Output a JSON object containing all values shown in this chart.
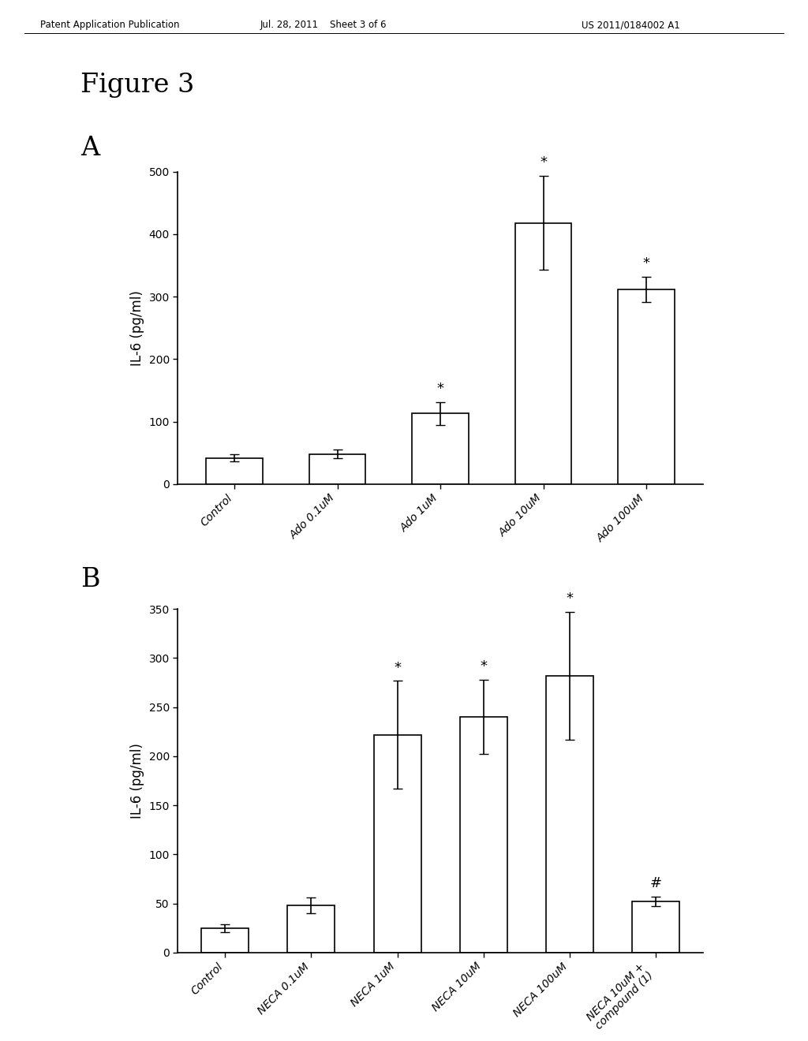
{
  "figure_title": "Figure 3",
  "header_left": "Patent Application Publication",
  "header_center": "Jul. 28, 2011    Sheet 3 of 6",
  "header_right": "US 2011/0184002 A1",
  "panel_A": {
    "label": "A",
    "categories": [
      "Control",
      "Ado 0.1uM",
      "Ado 1uM",
      "Ado 10uM",
      "Ado 100uM"
    ],
    "values": [
      42,
      48,
      113,
      418,
      312
    ],
    "errors": [
      6,
      7,
      18,
      75,
      20
    ],
    "sig_symbol": [
      "",
      "",
      "*",
      "*",
      "*"
    ],
    "ylabel": "IL-6 (pg/ml)",
    "ylim": [
      0,
      500
    ],
    "yticks": [
      0,
      100,
      200,
      300,
      400,
      500
    ]
  },
  "panel_B": {
    "label": "B",
    "categories": [
      "Control",
      "NECA 0.1uM",
      "NECA 1uM",
      "NECA 10uM",
      "NECA 100uM",
      "NECA 10uM +\ncompound (1)"
    ],
    "values": [
      25,
      48,
      222,
      240,
      282,
      52
    ],
    "errors": [
      4,
      8,
      55,
      38,
      65,
      5
    ],
    "sig_symbol": [
      "",
      "",
      "*",
      "*",
      "*",
      "#"
    ],
    "ylabel": "IL-6 (pg/ml)",
    "ylim": [
      0,
      350
    ],
    "yticks": [
      0,
      50,
      100,
      150,
      200,
      250,
      300,
      350
    ]
  },
  "bar_color": "#ffffff",
  "bar_edgecolor": "#000000",
  "background_color": "#ffffff",
  "bar_width": 0.55,
  "capsize": 4,
  "tick_label_fontsize": 10,
  "axis_label_fontsize": 12,
  "sig_fontsize": 13
}
